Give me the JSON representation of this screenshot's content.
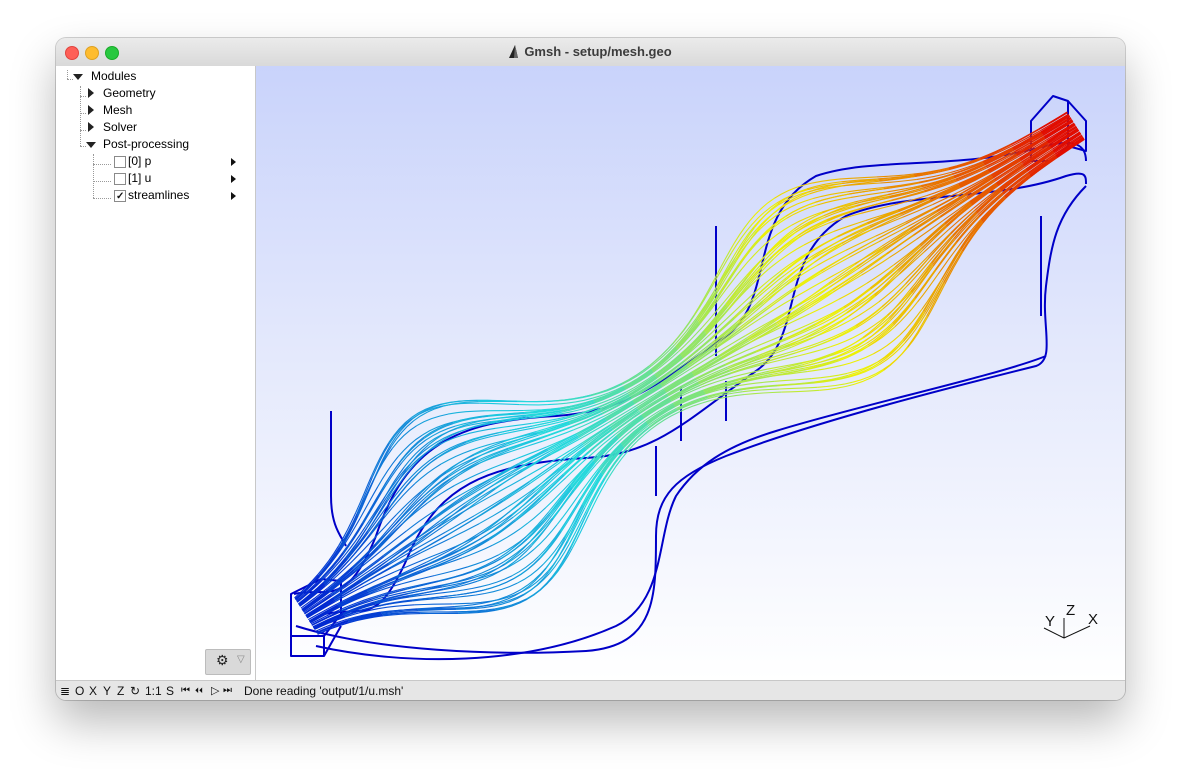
{
  "window": {
    "title": "Gmsh - setup/mesh.geo"
  },
  "tree": {
    "root": "Modules",
    "items": [
      "Geometry",
      "Mesh",
      "Solver",
      "Post-processing"
    ],
    "views": [
      {
        "label": "[0] p",
        "checked": false
      },
      {
        "label": "[1] u",
        "checked": false
      },
      {
        "label": "streamlines",
        "checked": true
      }
    ]
  },
  "statusbar": {
    "buttons": [
      "≣",
      "O",
      "X",
      "Y",
      "Z",
      "↻",
      "1:1",
      "S",
      "⏮",
      "⏴⏴",
      "▷",
      "⏭"
    ],
    "message": "Done reading 'output/1/u.msh'"
  },
  "axes": {
    "y": "Y",
    "z": "Z",
    "x": "X"
  },
  "colors": {
    "outline": "#0000c8",
    "stream_low": "#0020d0",
    "stream_mid_low": "#20d8e0",
    "stream_mid": "#f0f000",
    "stream_high": "#e00000"
  },
  "icons": {
    "settings": "gear-icon",
    "dropdown": "dropdown-icon"
  }
}
